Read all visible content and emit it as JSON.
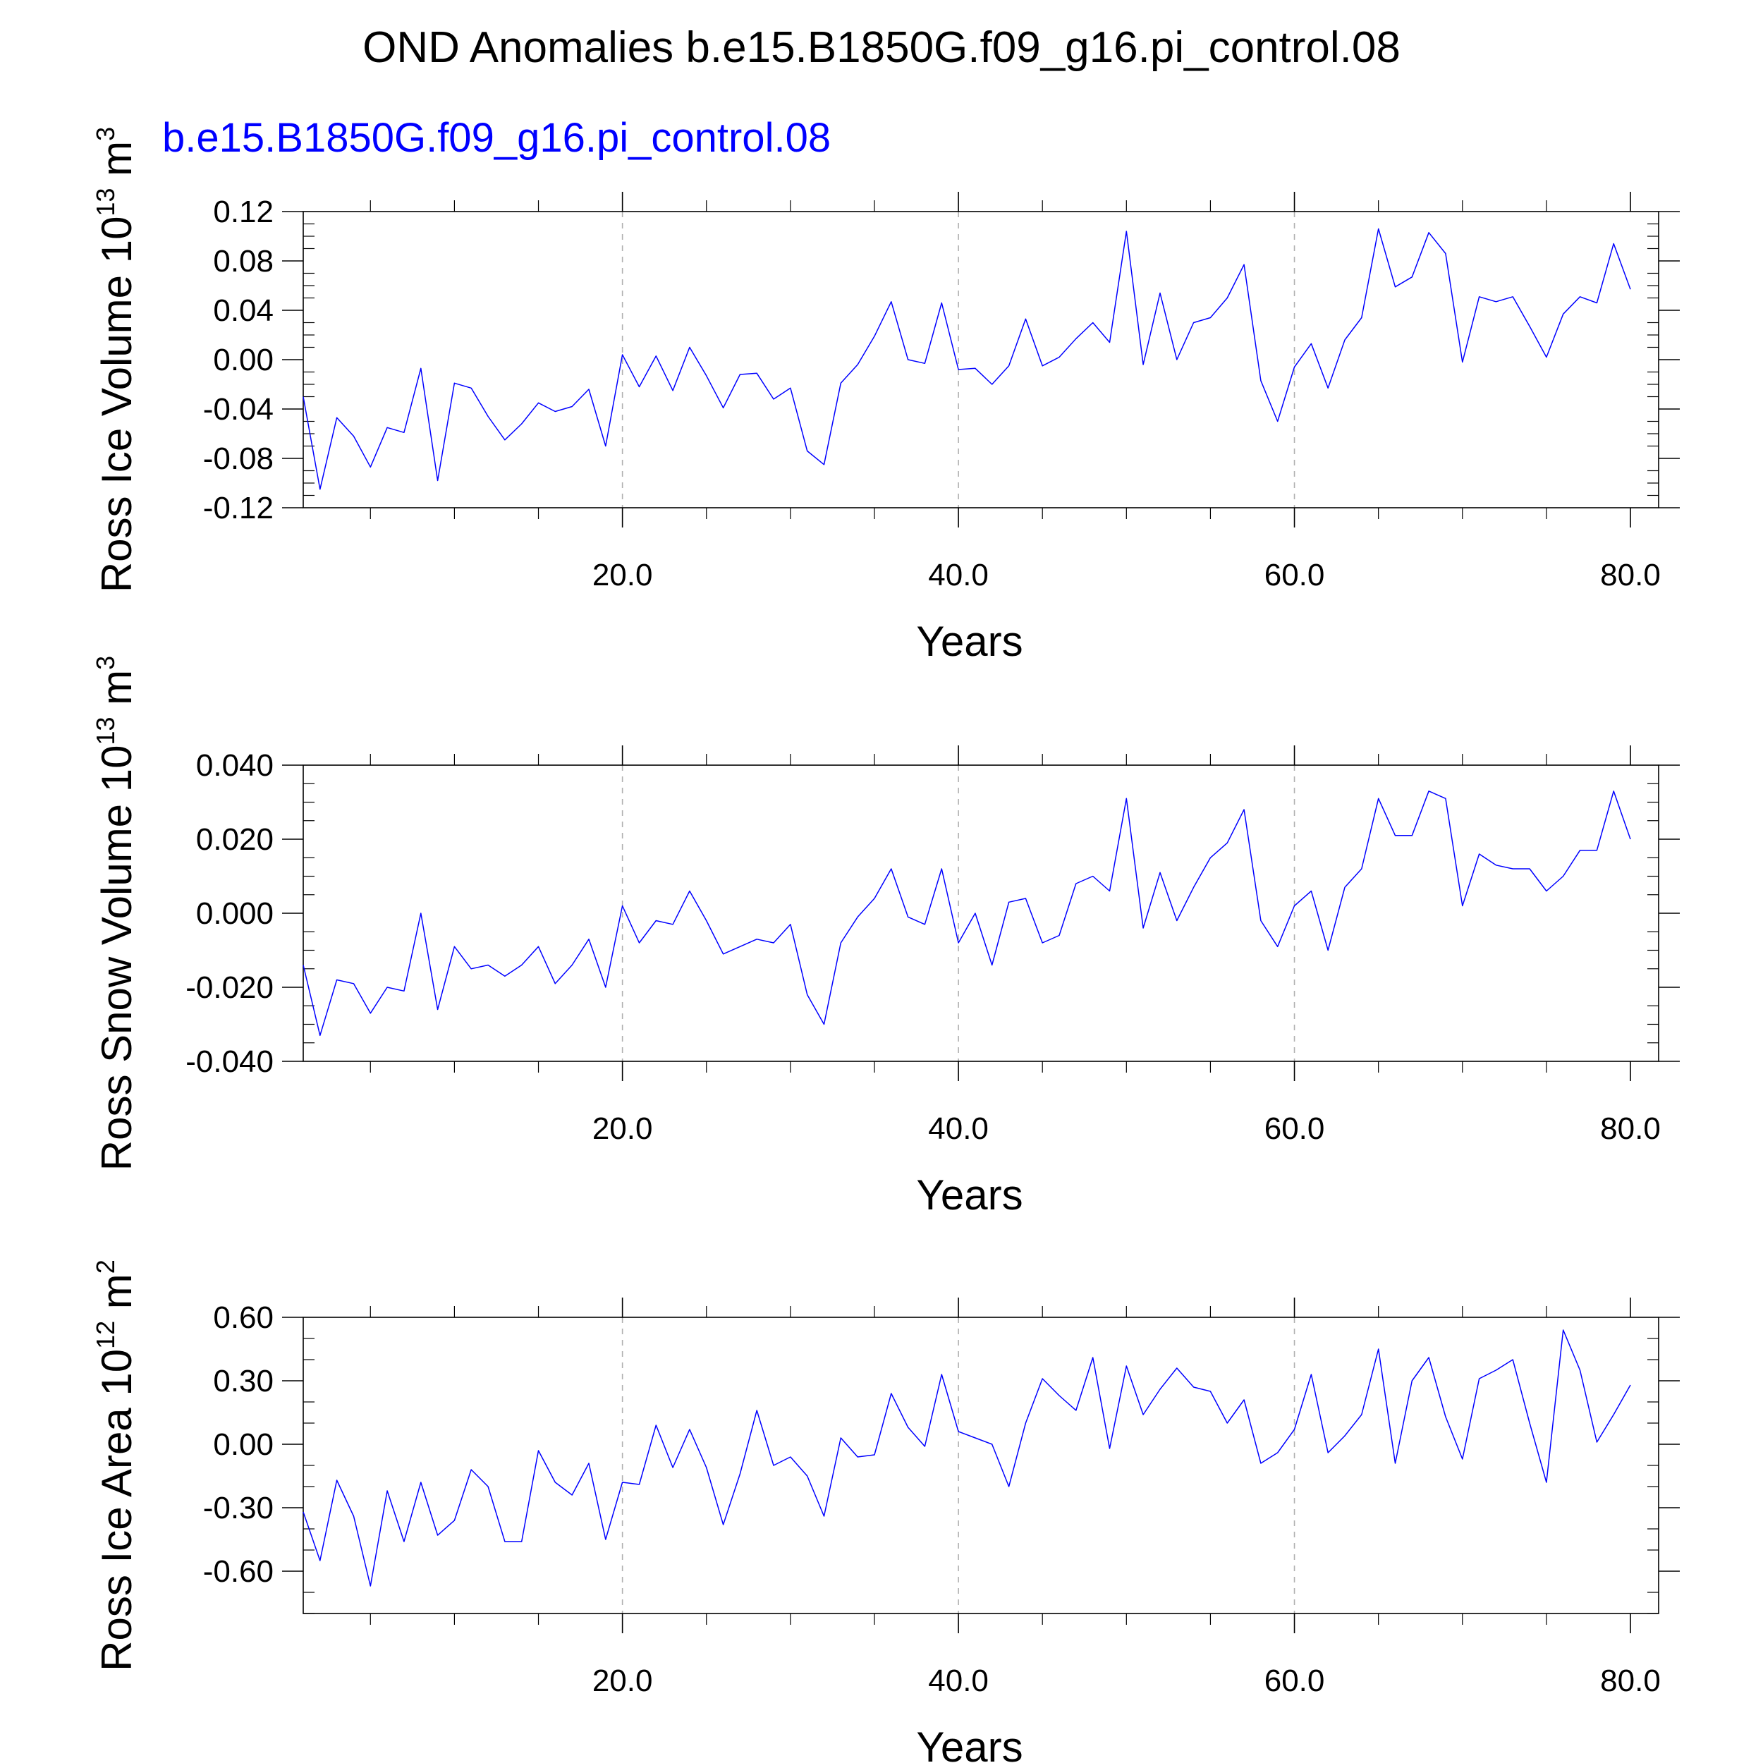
{
  "title": "OND Anomalies b.e15.B1850G.f09_g16.pi_control.08",
  "series_label": "b.e15.B1850G.f09_g16.pi_control.08",
  "colors": {
    "series": "#0000ff",
    "grid": "#b0b0b0",
    "axis": "#000000"
  },
  "chart_data": [
    {
      "type": "line",
      "ylabel": {
        "name": "Ross Ice Volume 10",
        "exp": "13",
        "unit": " m",
        "unit_exp": "3"
      },
      "xlabel": "Years",
      "xlim": [
        1,
        80
      ],
      "ylim": [
        -0.12,
        0.12
      ],
      "x_ticks": [
        20,
        40,
        60,
        80
      ],
      "x_tick_labels": [
        "20.0",
        "40.0",
        "60.0",
        "80.0"
      ],
      "y_ticks": [
        -0.12,
        -0.08,
        -0.04,
        0.0,
        0.04,
        0.08,
        0.12
      ],
      "y_tick_labels": [
        "-0.12",
        "-0.08",
        "-0.04",
        "0.00",
        "0.04",
        "0.08",
        "0.12"
      ],
      "y_minor_step": 0.01,
      "grid": "vertical dashed at major x ticks",
      "series": [
        {
          "x_start": 1,
          "x_step": 1,
          "values": [
            -0.03,
            -0.105,
            -0.047,
            -0.062,
            -0.087,
            -0.055,
            -0.059,
            -0.007,
            -0.098,
            -0.019,
            -0.023,
            -0.046,
            -0.065,
            -0.052,
            -0.035,
            -0.042,
            -0.038,
            -0.024,
            -0.07,
            0.004,
            -0.022,
            0.003,
            -0.025,
            0.01,
            -0.013,
            -0.039,
            -0.012,
            -0.011,
            -0.032,
            -0.023,
            -0.074,
            -0.085,
            -0.019,
            -0.004,
            0.019,
            0.047,
            0.0,
            -0.003,
            0.046,
            -0.008,
            -0.007,
            -0.02,
            -0.005,
            0.033,
            -0.005,
            0.002,
            0.017,
            0.03,
            0.014,
            0.104,
            -0.004,
            0.054,
            0.0,
            0.03,
            0.034,
            0.05,
            0.077,
            -0.017,
            -0.05,
            -0.006,
            0.013,
            -0.023,
            0.016,
            0.034,
            0.106,
            0.059,
            0.067,
            0.103,
            0.086,
            -0.002,
            0.051,
            0.047,
            0.051,
            0.027,
            0.002,
            0.037,
            0.051,
            0.046,
            0.094,
            0.057
          ]
        }
      ]
    },
    {
      "type": "line",
      "ylabel": {
        "name": "Ross Snow Volume 10",
        "exp": "13",
        "unit": " m",
        "unit_exp": "3"
      },
      "xlabel": "Years",
      "xlim": [
        1,
        80
      ],
      "ylim": [
        -0.04,
        0.04
      ],
      "x_ticks": [
        20,
        40,
        60,
        80
      ],
      "x_tick_labels": [
        "20.0",
        "40.0",
        "60.0",
        "80.0"
      ],
      "y_ticks": [
        -0.04,
        -0.02,
        0.0,
        0.02,
        0.04
      ],
      "y_tick_labels": [
        "-0.040",
        "-0.020",
        "0.000",
        "0.020",
        "0.040"
      ],
      "y_minor_step": 0.005,
      "grid": "vertical dashed at major x ticks",
      "series": [
        {
          "x_start": 1,
          "x_step": 1,
          "values": [
            -0.014,
            -0.033,
            -0.018,
            -0.019,
            -0.027,
            -0.02,
            -0.021,
            0.0,
            -0.026,
            -0.009,
            -0.015,
            -0.014,
            -0.017,
            -0.014,
            -0.009,
            -0.019,
            -0.014,
            -0.007,
            -0.02,
            0.002,
            -0.008,
            -0.002,
            -0.003,
            0.006,
            -0.002,
            -0.011,
            -0.009,
            -0.007,
            -0.008,
            -0.003,
            -0.022,
            -0.03,
            -0.008,
            -0.001,
            0.004,
            0.012,
            -0.001,
            -0.003,
            0.012,
            -0.008,
            0.0,
            -0.014,
            0.003,
            0.004,
            -0.008,
            -0.006,
            0.008,
            0.01,
            0.006,
            0.031,
            -0.004,
            0.011,
            -0.002,
            0.007,
            0.015,
            0.019,
            0.028,
            -0.002,
            -0.009,
            0.002,
            0.006,
            -0.01,
            0.007,
            0.012,
            0.031,
            0.021,
            0.021,
            0.033,
            0.031,
            0.002,
            0.016,
            0.013,
            0.012,
            0.012,
            0.006,
            0.01,
            0.017,
            0.017,
            0.033,
            0.02
          ]
        }
      ]
    },
    {
      "type": "line",
      "ylabel": {
        "name": "Ross Ice Area 10",
        "exp": "12",
        "unit": " m",
        "unit_exp": "2"
      },
      "xlabel": "Years",
      "xlim": [
        1,
        80
      ],
      "ylim": [
        -0.8,
        0.6
      ],
      "x_ticks": [
        20,
        40,
        60,
        80
      ],
      "x_tick_labels": [
        "20.0",
        "40.0",
        "60.0",
        "80.0"
      ],
      "y_ticks": [
        -0.6,
        -0.3,
        0.0,
        0.3,
        0.6
      ],
      "y_tick_labels": [
        "-0.60",
        "-0.30",
        "0.00",
        "0.30",
        "0.60"
      ],
      "y_minor_step": 0.1,
      "grid": "vertical dashed at major x ticks",
      "series": [
        {
          "x_start": 1,
          "x_step": 1,
          "values": [
            -0.32,
            -0.55,
            -0.17,
            -0.34,
            -0.67,
            -0.22,
            -0.46,
            -0.18,
            -0.43,
            -0.36,
            -0.12,
            -0.2,
            -0.46,
            -0.46,
            -0.03,
            -0.18,
            -0.24,
            -0.09,
            -0.45,
            -0.18,
            -0.19,
            0.09,
            -0.11,
            0.07,
            -0.11,
            -0.38,
            -0.14,
            0.16,
            -0.1,
            -0.06,
            -0.15,
            -0.34,
            0.03,
            -0.06,
            -0.05,
            0.24,
            0.08,
            -0.01,
            0.33,
            0.06,
            0.03,
            0.0,
            -0.2,
            0.1,
            0.31,
            0.23,
            0.16,
            0.41,
            -0.02,
            0.37,
            0.14,
            0.26,
            0.36,
            0.27,
            0.25,
            0.1,
            0.21,
            -0.09,
            -0.04,
            0.07,
            0.33,
            -0.04,
            0.04,
            0.14,
            0.45,
            -0.09,
            0.3,
            0.41,
            0.13,
            -0.07,
            0.31,
            0.35,
            0.4,
            0.1,
            -0.18,
            0.54,
            0.35,
            0.01,
            0.14,
            0.28
          ]
        }
      ]
    }
  ]
}
